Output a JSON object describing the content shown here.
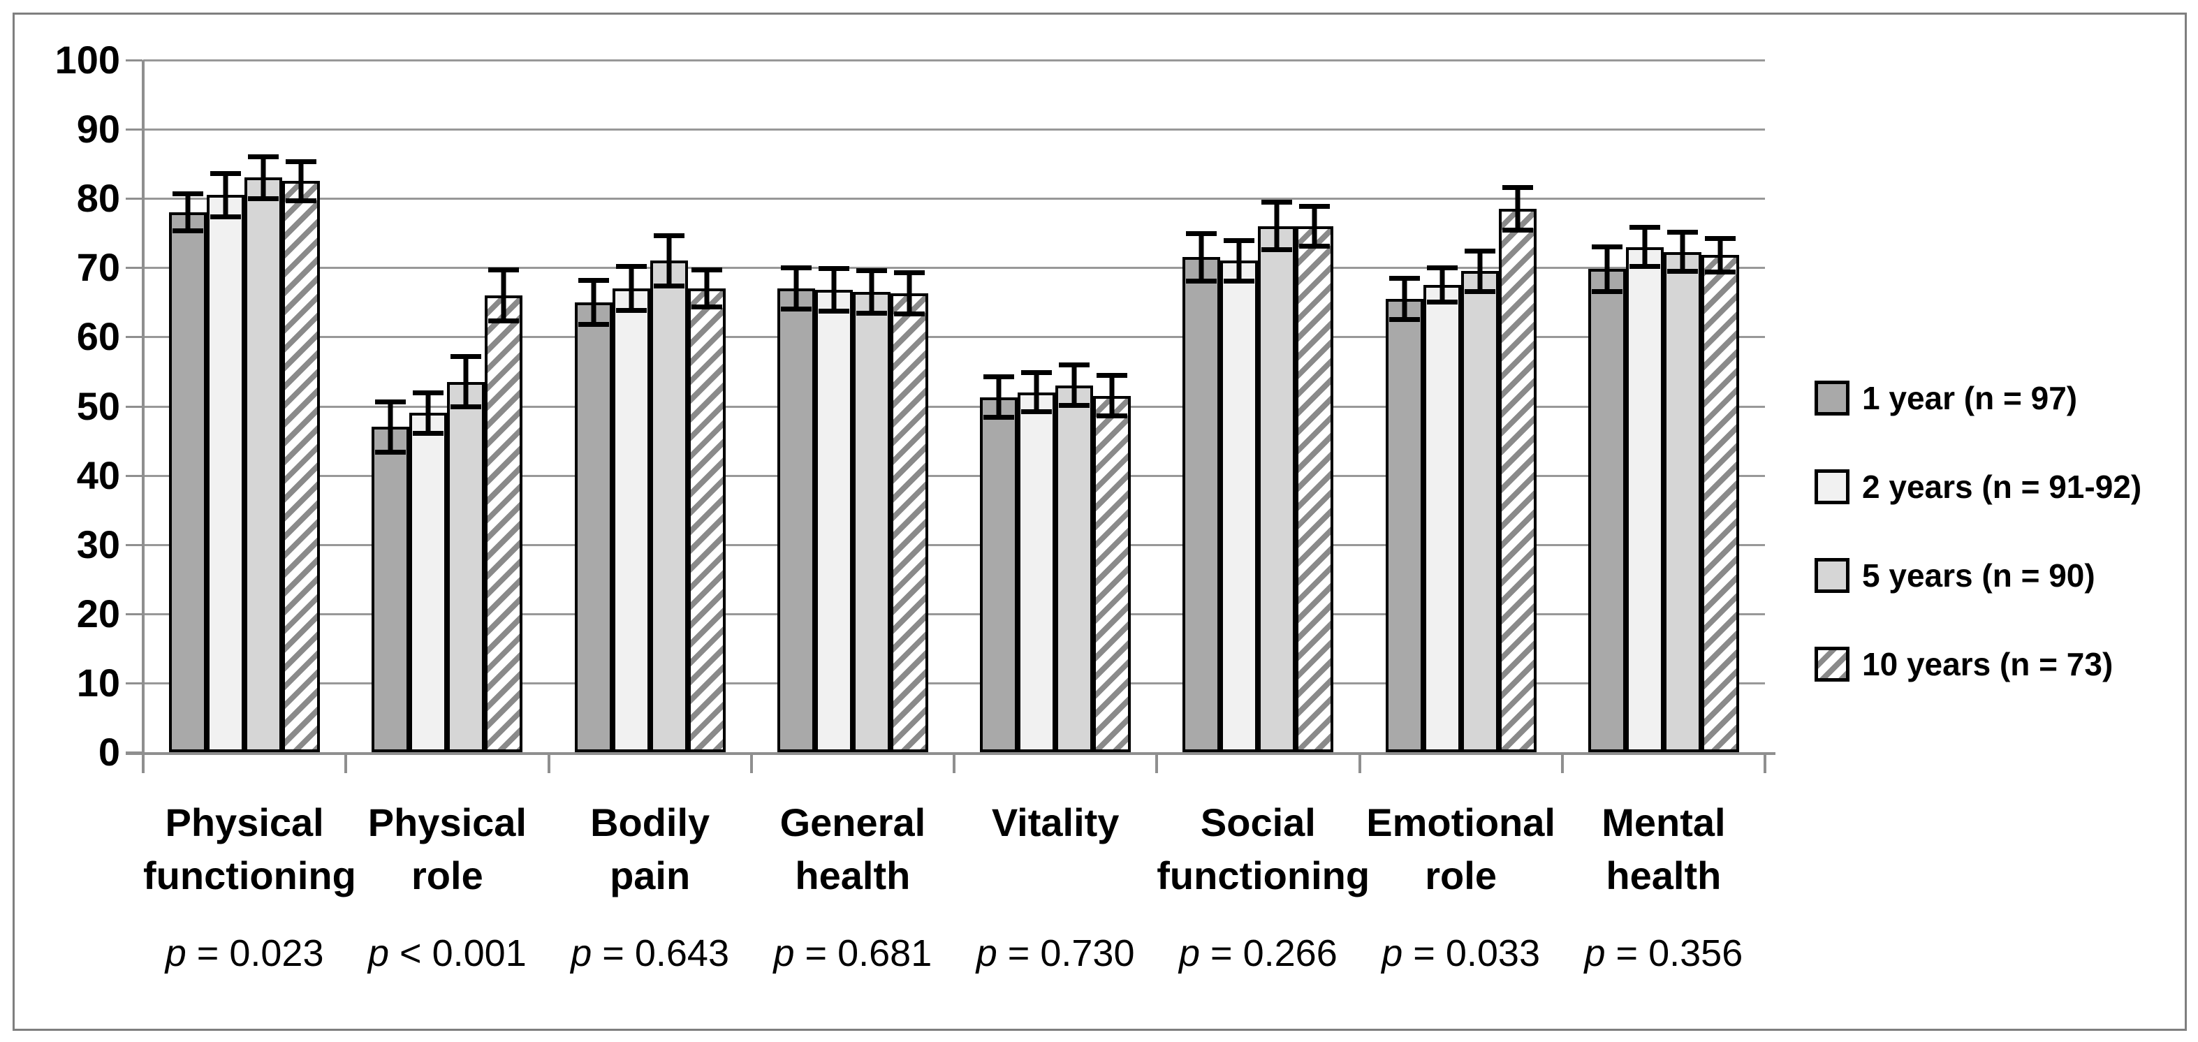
{
  "chart_data": {
    "type": "bar",
    "title": "",
    "xlabel": "",
    "ylabel": "",
    "ylim": [
      0,
      100
    ],
    "ytick_step": 10,
    "grid": true,
    "legend_position": "right",
    "categories": [
      "Physical functioning",
      "Physical role",
      "Bodily pain",
      "General health",
      "Vitality",
      "Social functioning",
      "Emotional role",
      "Mental health"
    ],
    "category_label_lines": [
      [
        "Physical",
        "functioning"
      ],
      [
        "Physical",
        "role"
      ],
      [
        "Bodily pain"
      ],
      [
        "General",
        "health"
      ],
      [
        "Vitality"
      ],
      [
        "Social",
        "functioning"
      ],
      [
        "Emotional",
        "role"
      ],
      [
        "Mental",
        "health"
      ]
    ],
    "p_symbol": "p",
    "p_values": [
      "= 0.023",
      "< 0.001",
      "= 0.643",
      "= 0.681",
      "= 0.730",
      "= 0.266",
      "= 0.033",
      "= 0.356"
    ],
    "series": [
      {
        "name": "1 year (n = 97)",
        "pattern": "solid",
        "fill": "#a9a9a9",
        "values": [
          78.0,
          47.0,
          65.0,
          67.0,
          51.3,
          71.5,
          65.5,
          69.8
        ],
        "errors": [
          3.0,
          4.0,
          3.5,
          3.3,
          3.3,
          3.8,
          3.3,
          3.6
        ]
      },
      {
        "name": "2 years (n = 91-92)",
        "pattern": "solid",
        "fill": "#f1f1f1",
        "values": [
          80.5,
          49.0,
          67.0,
          66.8,
          52.0,
          71.0,
          67.5,
          73.0
        ],
        "errors": [
          3.5,
          3.3,
          3.5,
          3.4,
          3.2,
          3.3,
          2.8,
          3.2
        ]
      },
      {
        "name": "5 years (n = 90)",
        "pattern": "solid",
        "fill": "#d6d6d6",
        "values": [
          83.0,
          53.5,
          71.0,
          66.5,
          53.0,
          76.0,
          69.5,
          72.3
        ],
        "errors": [
          3.4,
          4.0,
          4.0,
          3.4,
          3.3,
          3.8,
          3.3,
          3.2
        ]
      },
      {
        "name": "10 years (n = 73)",
        "pattern": "diagonal-hatch",
        "fill": "#ffffff",
        "hatch_color": "#8a8a8a",
        "values": [
          82.5,
          66.0,
          67.0,
          66.3,
          51.5,
          76.0,
          78.5,
          71.8
        ],
        "errors": [
          3.2,
          4.0,
          3.0,
          3.3,
          3.3,
          3.2,
          3.4,
          2.8
        ]
      }
    ],
    "colors": {
      "grid": "#989898",
      "axis": "#8f8f8f",
      "bar_border": "#000000",
      "error_bar": "#000000",
      "figure_border": "#7f7f7f"
    }
  },
  "legend": {
    "items": [
      "1 year (n = 97)",
      "2 years (n = 91-92)",
      "5 years (n = 90)",
      "10 years (n = 73)"
    ]
  }
}
